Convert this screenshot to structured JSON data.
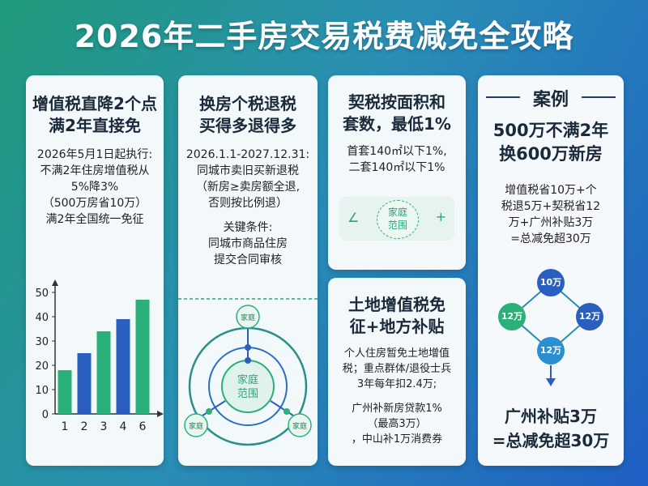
{
  "title": "2026年二手房交易税费减免全攻略",
  "card1": {
    "title_l1": "增值税直降2个点",
    "title_l2": "满2年直接免",
    "body": [
      "2026年5月1日起执行:",
      "不满2年住房增值税从",
      "5%降3%",
      "（500万房省10万）",
      "满2年全国统一免征"
    ]
  },
  "chart_data": {
    "type": "bar",
    "categories": [
      "1",
      "2",
      "3",
      "4",
      "6"
    ],
    "values": [
      18,
      25,
      34,
      39,
      47
    ],
    "colors": [
      "#2bb07a",
      "#2a5fbf",
      "#2bb07a",
      "#2a5fbf",
      "#2bb07a"
    ],
    "ylim": [
      0,
      50
    ],
    "yticks": [
      0,
      10,
      20,
      30,
      40,
      50
    ],
    "grid": false
  },
  "card2": {
    "title_l1": "换房个税退税",
    "title_l2": "买得多退得多",
    "body": [
      "2026.1.1-2027.12.31:",
      "同城市卖旧买新退税",
      "（新房≥卖房额全退,",
      "否则按比例退）"
    ],
    "cond": [
      "关键条件:",
      "同城市商品住房",
      "提交合同审核"
    ],
    "diagram": {
      "center_l1": "家庭",
      "center_l2": "范围",
      "top": "家庭",
      "left": "家庭",
      "right": "家庭"
    }
  },
  "card3": {
    "title_l1": "契税按面积和",
    "title_l2": "套数，最低1%",
    "body": [
      "首套140㎡以下1%,",
      "二套140㎡以下1%"
    ],
    "badge_l1": "家庭",
    "badge_l2": "范围",
    "badge_left": "∠",
    "badge_right": "+"
  },
  "card4": {
    "title_l1": "土地增值税免",
    "title_l2": "征+地方补贴",
    "body": [
      "个人住房暂免土地增值",
      "税；重点群体/退役士兵",
      "3年每年扣2.4万;"
    ],
    "body2": [
      "广州补新房贷款1%",
      "（最高3万）",
      "，中山补1万消费券"
    ]
  },
  "card5": {
    "header": "案例",
    "title_l1": "500万不满2年",
    "title_l2": "换600万新房",
    "body": [
      "增值税省10万+个",
      "税退5万+契税省12",
      "万+广州补贴3万",
      "=总减免超30万"
    ],
    "nodes": {
      "top": "10万",
      "left": "12万",
      "right": "12万",
      "bottom": "12万"
    },
    "footer_l1": "广州补贴3万",
    "footer_l2": "=总减免超30万"
  }
}
